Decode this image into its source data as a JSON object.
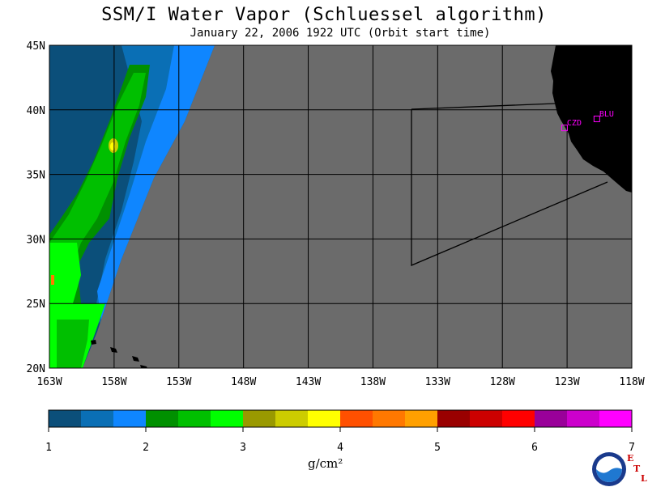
{
  "title": "SSM/I Water Vapor (Schluessel algorithm)",
  "subtitle": "January 22, 2006  1922 UTC  (Orbit start time)",
  "map": {
    "lat_labels": [
      "45N",
      "40N",
      "35N",
      "30N",
      "25N",
      "20N"
    ],
    "lon_labels": [
      "163W",
      "158W",
      "153W",
      "148W",
      "143W",
      "138W",
      "133W",
      "128W",
      "123W",
      "118W"
    ],
    "stations": [
      {
        "id": "CZD",
        "lon": -123.2,
        "lat": 38.6
      },
      {
        "id": "BLU",
        "lon": -120.7,
        "lat": 39.3
      }
    ],
    "colors": {
      "no_data": "#6b6b6b",
      "land": "#000000",
      "station": "#ff00ff",
      "grid": "#000000"
    }
  },
  "colorbar": {
    "ticks": [
      "1",
      "2",
      "3",
      "4",
      "5",
      "6",
      "7"
    ],
    "units": "g/cm²",
    "colors": [
      "#0b4f7a",
      "#0a6fb5",
      "#0f86ff",
      "#009000",
      "#00bf00",
      "#00ff00",
      "#999900",
      "#cccc00",
      "#ffff00",
      "#ff5000",
      "#ff7800",
      "#ffa000",
      "#990000",
      "#cc0000",
      "#ff0000",
      "#990099",
      "#cc00cc",
      "#ff00ff"
    ]
  },
  "logo": {
    "text": "NOAA",
    "etl": [
      "E",
      "T",
      "L"
    ]
  }
}
